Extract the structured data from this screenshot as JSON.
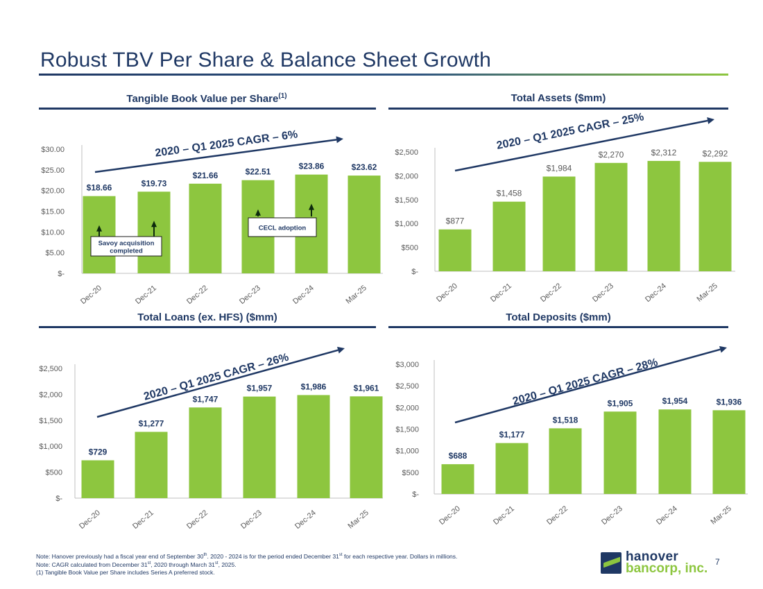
{
  "page": {
    "title": "Robust TBV Per Share & Balance Sheet Growth",
    "page_number": "7"
  },
  "colors": {
    "bar": "#8dc63f",
    "navy": "#1f3864",
    "axis_text": "#595959"
  },
  "headings": {
    "tbv": "Tangible Book Value per Share",
    "tbv_sup": "(1)",
    "assets": "Total Assets ($mm)",
    "loans": "Total Loans (ex. HFS) ($mm)",
    "deposits": "Total Deposits ($mm)"
  },
  "footnotes": {
    "note1_a": "Note: Hanover previously had a fiscal year end of September 30",
    "note1_sup1": "th",
    "note1_b": ". 2020 - 2024 is for the period ended December 31",
    "note1_sup2": "st",
    "note1_c": " for each respective year. Dollars in millions.",
    "note2_a": "Note: CAGR calculated from December 31",
    "note2_sup1": "st",
    "note2_b": ", 2020 through March 31",
    "note2_sup2": "st",
    "note2_c": ", 2025.",
    "note3": "(1) Tangible Book Value per Share includes Series A preferred stock."
  },
  "logo": {
    "line1": "hanover",
    "line2": "bancorp, inc."
  },
  "chart_data": [
    {
      "id": "tbv",
      "type": "bar",
      "title": "Tangible Book Value per Share(1)",
      "categories": [
        "Dec-20",
        "Dec-21",
        "Dec-22",
        "Dec-23",
        "Dec-24",
        "Mar-25"
      ],
      "values": [
        18.66,
        19.73,
        21.66,
        22.51,
        23.86,
        23.62
      ],
      "value_labels": [
        "$18.66",
        "$19.73",
        "$21.66",
        "$22.51",
        "$23.86",
        "$23.62"
      ],
      "yticks": [
        0,
        5,
        10,
        15,
        20,
        25,
        30
      ],
      "ytick_labels": [
        "$-",
        "$5.00",
        "$10.00",
        "$15.00",
        "$20.00",
        "$25.00",
        "$30.00"
      ],
      "ylim": [
        0,
        30
      ],
      "label_bold": true,
      "cagr": "2020 – Q1 2025 CAGR – 6%",
      "annotations": [
        {
          "text": "Savoy acquisition completed",
          "lines": [
            "Savoy acquisition",
            "completed"
          ],
          "arrow_categories": [
            "Dec-20",
            "Dec-21"
          ]
        },
        {
          "text": "CECL adoption",
          "lines": [
            "CECL adoption"
          ],
          "arrow_categories": [
            "Dec-23",
            "Dec-24"
          ]
        }
      ]
    },
    {
      "id": "assets",
      "type": "bar",
      "title": "Total Assets ($mm)",
      "categories": [
        "Dec-20",
        "Dec-21",
        "Dec-22",
        "Dec-23",
        "Dec-24",
        "Mar-25"
      ],
      "values": [
        877,
        1458,
        1984,
        2270,
        2312,
        2292
      ],
      "value_labels": [
        "$877",
        "$1,458",
        "$1,984",
        "$2,270",
        "$2,312",
        "$2,292"
      ],
      "yticks": [
        0,
        500,
        1000,
        1500,
        2000,
        2500
      ],
      "ytick_labels": [
        "$-",
        "$500",
        "$1,000",
        "$1,500",
        "$2,000",
        "$2,500"
      ],
      "ylim": [
        0,
        2500
      ],
      "label_bold": false,
      "cagr": "2020 – Q1 2025 CAGR – 25%"
    },
    {
      "id": "loans",
      "type": "bar",
      "title": "Total Loans (ex. HFS) ($mm)",
      "categories": [
        "Dec-20",
        "Dec-21",
        "Dec-22",
        "Dec-23",
        "Dec-24",
        "Mar-25"
      ],
      "values": [
        729,
        1277,
        1747,
        1957,
        1986,
        1961
      ],
      "value_labels": [
        "$729",
        "$1,277",
        "$1,747",
        "$1,957",
        "$1,986",
        "$1,961"
      ],
      "yticks": [
        0,
        500,
        1000,
        1500,
        2000,
        2500
      ],
      "ytick_labels": [
        "$-",
        "$500",
        "$1,000",
        "$1,500",
        "$2,000",
        "$2,500"
      ],
      "ylim": [
        0,
        2500
      ],
      "label_bold": true,
      "cagr": "2020 – Q1 2025 CAGR – 26%"
    },
    {
      "id": "deposits",
      "type": "bar",
      "title": "Total Deposits ($mm)",
      "categories": [
        "Dec-20",
        "Dec-21",
        "Dec-22",
        "Dec-23",
        "Dec-24",
        "Mar-25"
      ],
      "values": [
        688,
        1177,
        1518,
        1905,
        1954,
        1936
      ],
      "value_labels": [
        "$688",
        "$1,177",
        "$1,518",
        "$1,905",
        "$1,954",
        "$1,936"
      ],
      "yticks": [
        0,
        500,
        1000,
        1500,
        2000,
        2500,
        3000
      ],
      "ytick_labels": [
        "$-",
        "$500",
        "$1,000",
        "$1,500",
        "$2,000",
        "$2,500",
        "$3,000"
      ],
      "ylim": [
        0,
        3000
      ],
      "label_bold": true,
      "cagr": "2020 – Q1 2025 CAGR – 28%"
    }
  ]
}
